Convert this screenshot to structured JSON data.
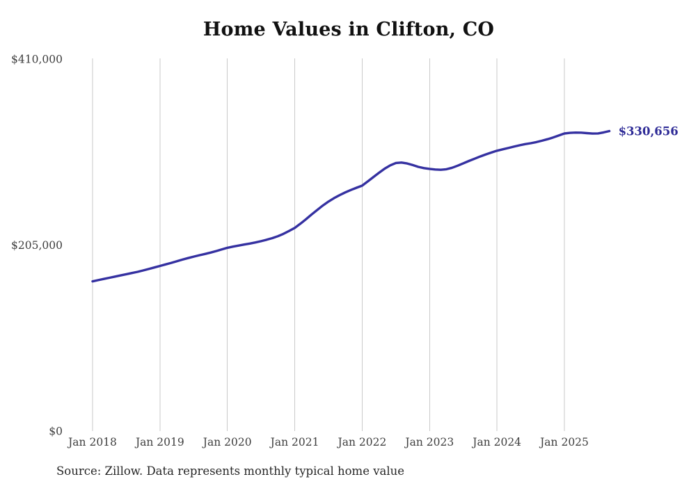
{
  "chart_data": {
    "type": "line",
    "title": "Home Values in Clifton, CO",
    "source_note": "Source: Zillow. Data represents monthly typical home value",
    "currency": "USD",
    "x_tick_labels": [
      "Jan 2018",
      "Jan 2019",
      "Jan 2020",
      "Jan 2021",
      "Jan 2022",
      "Jan 2023",
      "Jan 2024",
      "Jan 2025"
    ],
    "y_tick_labels": [
      "$410,000",
      "$205,000",
      "$0"
    ],
    "y_tick_values": [
      410000,
      205000,
      0
    ],
    "ylim": [
      0,
      410000
    ],
    "x_range": {
      "start": "Jan 2018",
      "end": "Sep 2025",
      "interval": "monthly"
    },
    "grid": "vertical-only",
    "legend": "none",
    "end_label": "$330,656",
    "latest_value": 330656,
    "series": [
      {
        "name": "Typical home value",
        "values": [
          165000,
          166400,
          167700,
          169000,
          170300,
          171600,
          172900,
          174200,
          175500,
          177000,
          178600,
          180300,
          182000,
          183700,
          185400,
          187200,
          189000,
          190700,
          192300,
          193800,
          195200,
          196700,
          198400,
          200200,
          202000,
          203300,
          204500,
          205600,
          206700,
          207900,
          209300,
          210900,
          212700,
          214800,
          217400,
          220600,
          224000,
          228500,
          233500,
          238800,
          243800,
          248600,
          253000,
          256800,
          260100,
          263100,
          265800,
          268200,
          270500,
          275200,
          280000,
          284700,
          289200,
          292900,
          295500,
          296000,
          295000,
          293200,
          291200,
          289800,
          289000,
          288300,
          288000,
          288600,
          290200,
          292500,
          295100,
          297700,
          300200,
          302600,
          304900,
          307000,
          309000,
          310500,
          312000,
          313500,
          315000,
          316300,
          317300,
          318500,
          320000,
          321700,
          323600,
          325800,
          328000,
          328700,
          329000,
          328900,
          328400,
          327900,
          328100,
          329200,
          330656
        ]
      }
    ],
    "colors": {
      "line": "#3531a1",
      "end_label": "#2d2a96",
      "grid": "#c9c9c9",
      "tick_text": "#3e3e3e",
      "title_text": "#111111",
      "source_text": "#262626",
      "background": "#ffffff"
    }
  }
}
